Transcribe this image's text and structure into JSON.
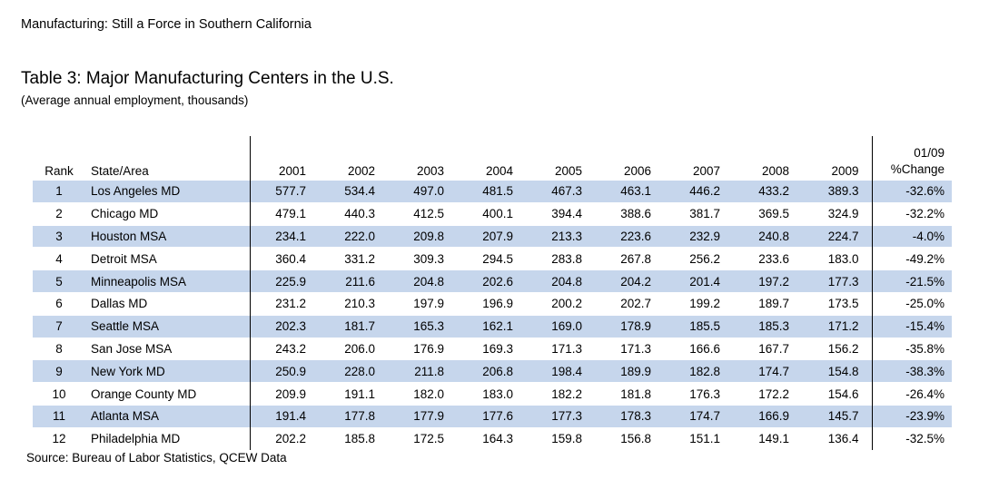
{
  "doc_title": "Manufacturing:  Still a Force in Southern California",
  "table_title": "Table 3:  Major Manufacturing Centers in the U.S.",
  "table_subtitle": "(Average annual employment, thousands)",
  "headers": {
    "rank": "Rank",
    "area": "State/Area",
    "years": [
      "2001",
      "2002",
      "2003",
      "2004",
      "2005",
      "2006",
      "2007",
      "2008",
      "2009"
    ],
    "change_line1": "01/09",
    "change_line2": "%Change"
  },
  "rows": [
    {
      "rank": "1",
      "area": "Los Angeles MD",
      "values": [
        "577.7",
        "534.4",
        "497.0",
        "481.5",
        "467.3",
        "463.1",
        "446.2",
        "433.2",
        "389.3"
      ],
      "change": "-32.6%"
    },
    {
      "rank": "2",
      "area": "Chicago MD",
      "values": [
        "479.1",
        "440.3",
        "412.5",
        "400.1",
        "394.4",
        "388.6",
        "381.7",
        "369.5",
        "324.9"
      ],
      "change": "-32.2%"
    },
    {
      "rank": "3",
      "area": "Houston MSA",
      "values": [
        "234.1",
        "222.0",
        "209.8",
        "207.9",
        "213.3",
        "223.6",
        "232.9",
        "240.8",
        "224.7"
      ],
      "change": "-4.0%"
    },
    {
      "rank": "4",
      "area": "Detroit MSA",
      "values": [
        "360.4",
        "331.2",
        "309.3",
        "294.5",
        "283.8",
        "267.8",
        "256.2",
        "233.6",
        "183.0"
      ],
      "change": "-49.2%"
    },
    {
      "rank": "5",
      "area": "Minneapolis MSA",
      "values": [
        "225.9",
        "211.6",
        "204.8",
        "202.6",
        "204.8",
        "204.2",
        "201.4",
        "197.2",
        "177.3"
      ],
      "change": "-21.5%"
    },
    {
      "rank": "6",
      "area": "Dallas MD",
      "values": [
        "231.2",
        "210.3",
        "197.9",
        "196.9",
        "200.2",
        "202.7",
        "199.2",
        "189.7",
        "173.5"
      ],
      "change": "-25.0%"
    },
    {
      "rank": "7",
      "area": "Seattle MSA",
      "values": [
        "202.3",
        "181.7",
        "165.3",
        "162.1",
        "169.0",
        "178.9",
        "185.5",
        "185.3",
        "171.2"
      ],
      "change": "-15.4%"
    },
    {
      "rank": "8",
      "area": "San Jose MSA",
      "values": [
        "243.2",
        "206.0",
        "176.9",
        "169.3",
        "171.3",
        "171.3",
        "166.6",
        "167.7",
        "156.2"
      ],
      "change": "-35.8%"
    },
    {
      "rank": "9",
      "area": "New York MD",
      "values": [
        "250.9",
        "228.0",
        "211.8",
        "206.8",
        "198.4",
        "189.9",
        "182.8",
        "174.7",
        "154.8"
      ],
      "change": "-38.3%"
    },
    {
      "rank": "10",
      "area": "Orange County MD",
      "values": [
        "209.9",
        "191.1",
        "182.0",
        "183.0",
        "182.2",
        "181.8",
        "176.3",
        "172.2",
        "154.6"
      ],
      "change": "-26.4%"
    },
    {
      "rank": "11",
      "area": "Atlanta MSA",
      "values": [
        "191.4",
        "177.8",
        "177.9",
        "177.6",
        "177.3",
        "178.3",
        "174.7",
        "166.9",
        "145.7"
      ],
      "change": "-23.9%"
    },
    {
      "rank": "12",
      "area": "Philadelphia MD",
      "values": [
        "202.2",
        "185.8",
        "172.5",
        "164.3",
        "159.8",
        "156.8",
        "151.1",
        "149.1",
        "136.4"
      ],
      "change": "-32.5%"
    }
  ],
  "source": "Source:  Bureau of Labor Statistics, QCEW Data",
  "colors": {
    "row_shade": "#c6d6ec"
  }
}
